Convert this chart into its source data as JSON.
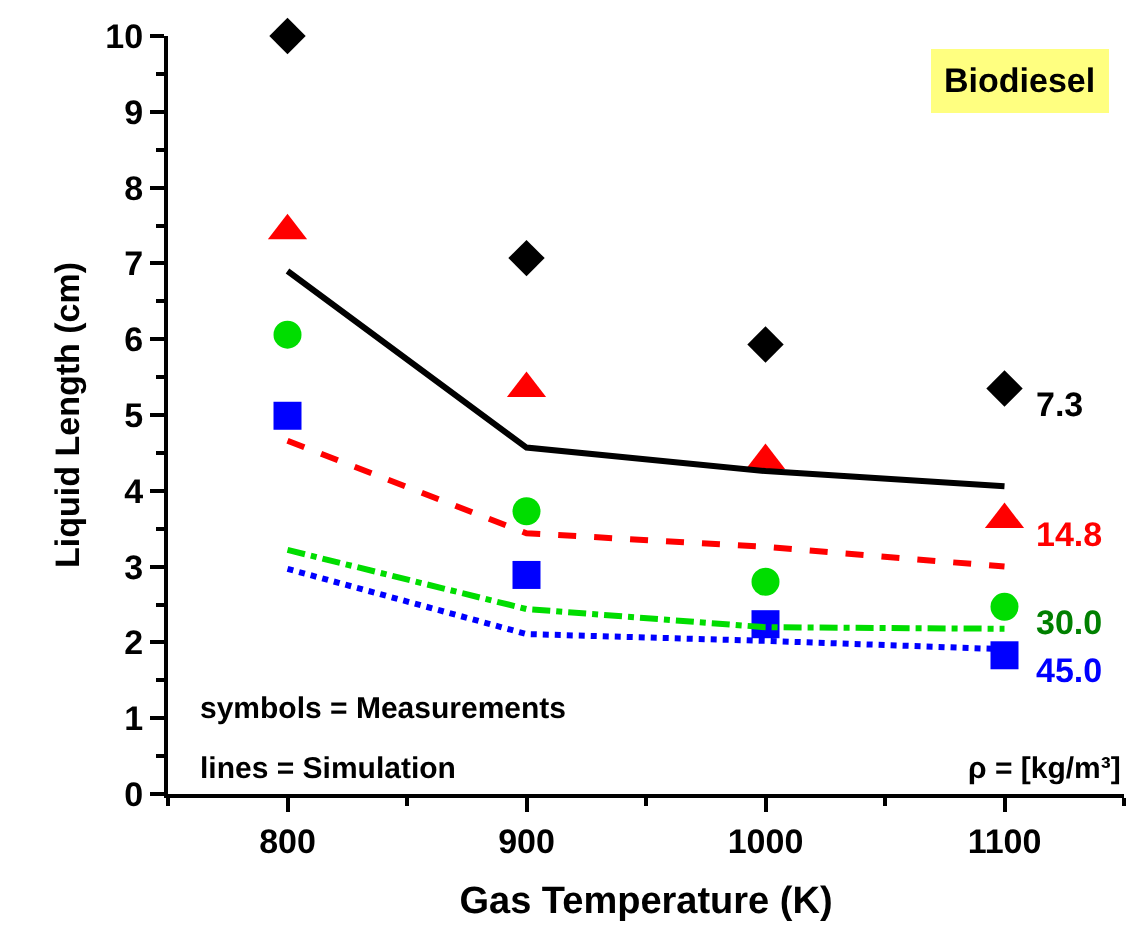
{
  "chart_data": {
    "type": "scatter",
    "xlabel": "Gas Temperature (K)",
    "ylabel": "Liquid Length (cm)",
    "x": [
      800,
      900,
      1000,
      1100
    ],
    "xlim": [
      750,
      1150
    ],
    "xticks": [
      800,
      900,
      1000,
      1100
    ],
    "ylim": [
      0,
      10
    ],
    "yticks": [
      0,
      1,
      2,
      3,
      4,
      5,
      6,
      7,
      8,
      9,
      10
    ],
    "grid": false,
    "legend": false,
    "series": [
      {
        "name": "7.3",
        "marker": "diamond",
        "color": "#000000",
        "values": [
          10.0,
          7.07,
          5.93,
          5.35
        ]
      },
      {
        "name": "14.8",
        "marker": "triangle",
        "color": "#ff0000",
        "values": [
          7.43,
          5.35,
          4.4,
          3.62
        ]
      },
      {
        "name": "30.0",
        "marker": "circle",
        "color": "#00dd00",
        "values": [
          6.06,
          3.73,
          2.8,
          2.47
        ]
      },
      {
        "name": "45.0",
        "marker": "square",
        "color": "#0000ff",
        "values": [
          4.99,
          2.89,
          2.24,
          1.83
        ]
      },
      {
        "type": "line",
        "line_style": "solid",
        "color": "#000000",
        "values": [
          6.9,
          4.57,
          4.26,
          4.06
        ]
      },
      {
        "type": "line",
        "line_style": "dashed",
        "color": "#ff0000",
        "values": [
          4.66,
          3.44,
          3.26,
          3.0
        ]
      },
      {
        "type": "line",
        "line_style": "dashdot",
        "color": "#00dd00",
        "values": [
          3.22,
          2.44,
          2.2,
          2.18
        ]
      },
      {
        "type": "line",
        "line_style": "dotted",
        "color": "#0000ff",
        "values": [
          2.97,
          2.11,
          2.02,
          1.91
        ]
      }
    ],
    "annotations": [
      "Biodiesel",
      "symbols = Measurements",
      "lines = Simulation",
      "ρ = [kg/m³]"
    ]
  }
}
